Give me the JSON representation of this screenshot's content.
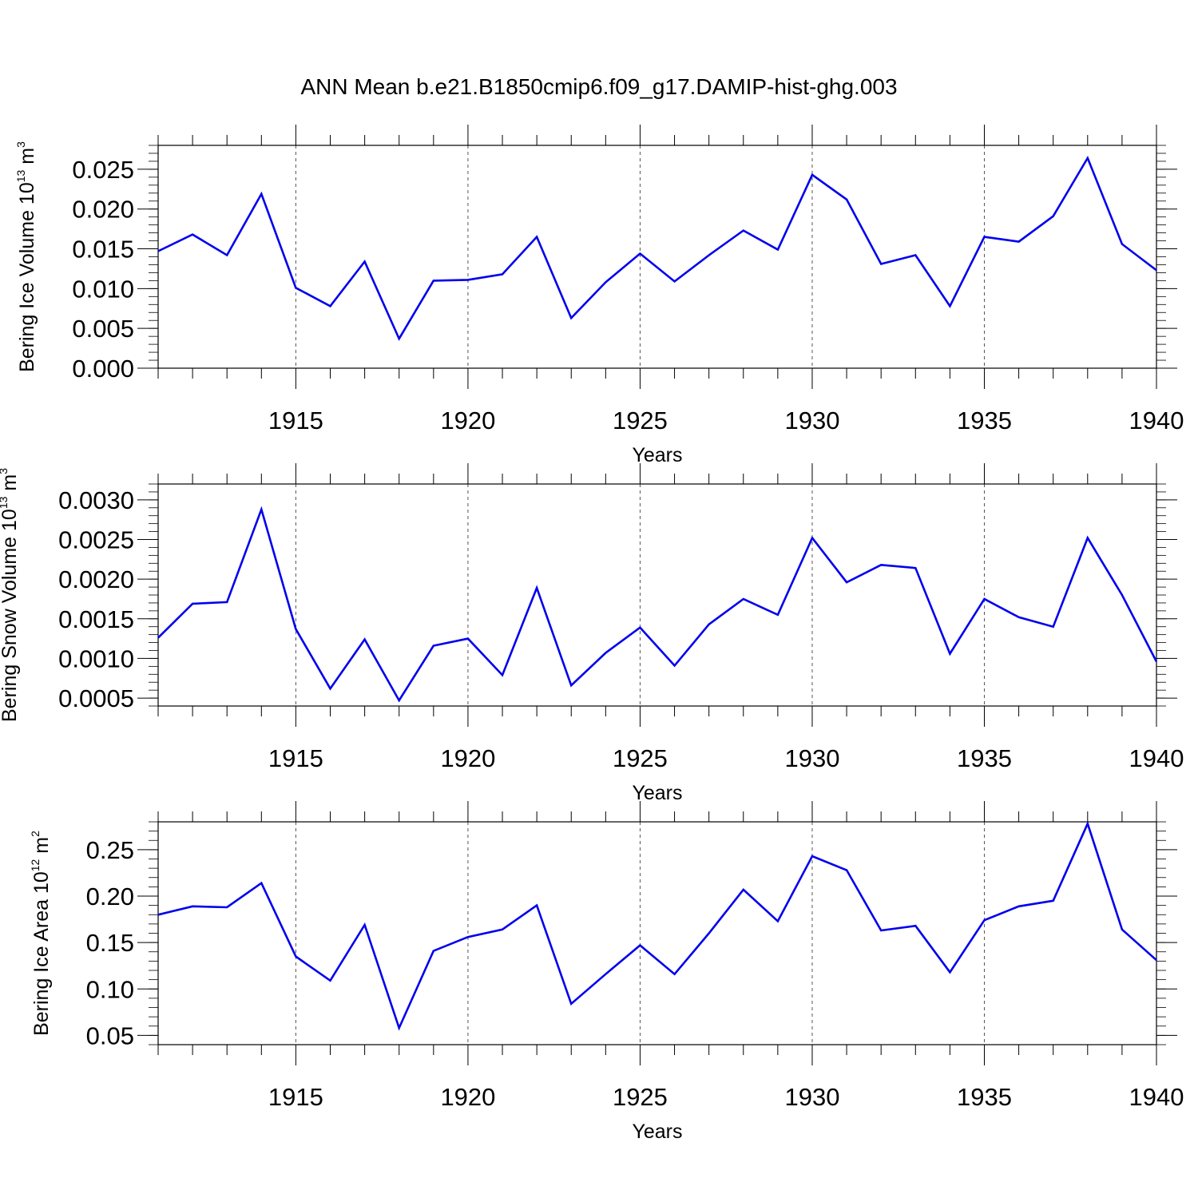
{
  "title": "ANN Mean b.e21.B1850cmip6.f09_g17.DAMIP-hist-ghg.003",
  "line_color": "#0000ee",
  "chart_data": [
    {
      "type": "line",
      "ylabel": "Bering Ice Volume",
      "ylabel_unit_base": "10",
      "ylabel_unit_exp": "13",
      "ylabel_unit_m": "m",
      "ylabel_unit_m_exp": "3",
      "xlabel": "Years",
      "xlim": [
        1911,
        1940
      ],
      "ylim": [
        0.0,
        0.028
      ],
      "x_major_ticks": [
        1915,
        1920,
        1925,
        1930,
        1935,
        1940
      ],
      "x_tick_labels": [
        "1915",
        "1920",
        "1925",
        "1930",
        "1935",
        "1940"
      ],
      "y_major_ticks": [
        0.0,
        0.005,
        0.01,
        0.015,
        0.02,
        0.025
      ],
      "y_tick_labels": [
        "0.000",
        "0.005",
        "0.010",
        "0.015",
        "0.020",
        "0.025"
      ],
      "y_minor_step": 0.001,
      "grid": "vertical-dashed",
      "x": [
        1911,
        1912,
        1913,
        1914,
        1915,
        1916,
        1917,
        1918,
        1919,
        1920,
        1921,
        1922,
        1923,
        1924,
        1925,
        1926,
        1927,
        1928,
        1929,
        1930,
        1931,
        1932,
        1933,
        1934,
        1935,
        1936,
        1937,
        1938,
        1939,
        1940
      ],
      "series": [
        {
          "values": [
            0.0147,
            0.0168,
            0.0142,
            0.0219,
            0.0101,
            0.0078,
            0.0134,
            0.0037,
            0.011,
            0.0111,
            0.0118,
            0.0165,
            0.0063,
            0.0108,
            0.0144,
            0.0109,
            0.0142,
            0.0173,
            0.0149,
            0.0243,
            0.0212,
            0.0131,
            0.0142,
            0.0078,
            0.0165,
            0.0159,
            0.0191,
            0.0264,
            0.0156,
            0.0123
          ]
        }
      ]
    },
    {
      "type": "line",
      "ylabel": "Bering Snow Volume",
      "ylabel_unit_base": "10",
      "ylabel_unit_exp": "13",
      "ylabel_unit_m": "m",
      "ylabel_unit_m_exp": "3",
      "xlabel": "Years",
      "xlim": [
        1911,
        1940
      ],
      "ylim": [
        0.0004,
        0.0032
      ],
      "x_major_ticks": [
        1915,
        1920,
        1925,
        1930,
        1935,
        1940
      ],
      "x_tick_labels": [
        "1915",
        "1920",
        "1925",
        "1930",
        "1935",
        "1940"
      ],
      "y_major_ticks": [
        0.0005,
        0.001,
        0.0015,
        0.002,
        0.0025,
        0.003
      ],
      "y_tick_labels": [
        "0.0005",
        "0.0010",
        "0.0015",
        "0.0020",
        "0.0025",
        "0.0030"
      ],
      "y_minor_step": 0.0001,
      "grid": "vertical-dashed",
      "x": [
        1911,
        1912,
        1913,
        1914,
        1915,
        1916,
        1917,
        1918,
        1919,
        1920,
        1921,
        1922,
        1923,
        1924,
        1925,
        1926,
        1927,
        1928,
        1929,
        1930,
        1931,
        1932,
        1933,
        1934,
        1935,
        1936,
        1937,
        1938,
        1939,
        1940
      ],
      "series": [
        {
          "values": [
            0.00126,
            0.00169,
            0.00171,
            0.00288,
            0.00137,
            0.00062,
            0.00124,
            0.00047,
            0.00116,
            0.00125,
            0.00079,
            0.00189,
            0.00066,
            0.00107,
            0.00139,
            0.00091,
            0.00143,
            0.00175,
            0.00155,
            0.00252,
            0.00196,
            0.00218,
            0.00214,
            0.00106,
            0.00175,
            0.00152,
            0.0014,
            0.00252,
            0.0018,
            0.00096
          ]
        }
      ]
    },
    {
      "type": "line",
      "ylabel": "Bering Ice Area",
      "ylabel_unit_base": "10",
      "ylabel_unit_exp": "12",
      "ylabel_unit_m": "m",
      "ylabel_unit_m_exp": "2",
      "xlabel": "Years",
      "xlim": [
        1911,
        1940
      ],
      "ylim": [
        0.04,
        0.28
      ],
      "x_major_ticks": [
        1915,
        1920,
        1925,
        1930,
        1935,
        1940
      ],
      "x_tick_labels": [
        "1915",
        "1920",
        "1925",
        "1930",
        "1935",
        "1940"
      ],
      "y_major_ticks": [
        0.05,
        0.1,
        0.15,
        0.2,
        0.25
      ],
      "y_tick_labels": [
        "0.05",
        "0.10",
        "0.15",
        "0.20",
        "0.25"
      ],
      "y_minor_step": 0.01,
      "grid": "vertical-dashed",
      "x": [
        1911,
        1912,
        1913,
        1914,
        1915,
        1916,
        1917,
        1918,
        1919,
        1920,
        1921,
        1922,
        1923,
        1924,
        1925,
        1926,
        1927,
        1928,
        1929,
        1930,
        1931,
        1932,
        1933,
        1934,
        1935,
        1936,
        1937,
        1938,
        1939,
        1940
      ],
      "series": [
        {
          "values": [
            0.18,
            0.189,
            0.188,
            0.214,
            0.135,
            0.109,
            0.169,
            0.058,
            0.141,
            0.156,
            0.164,
            0.19,
            0.084,
            0.116,
            0.147,
            0.116,
            0.16,
            0.207,
            0.173,
            0.243,
            0.228,
            0.163,
            0.168,
            0.118,
            0.174,
            0.189,
            0.195,
            0.278,
            0.164,
            0.131
          ]
        }
      ]
    }
  ]
}
